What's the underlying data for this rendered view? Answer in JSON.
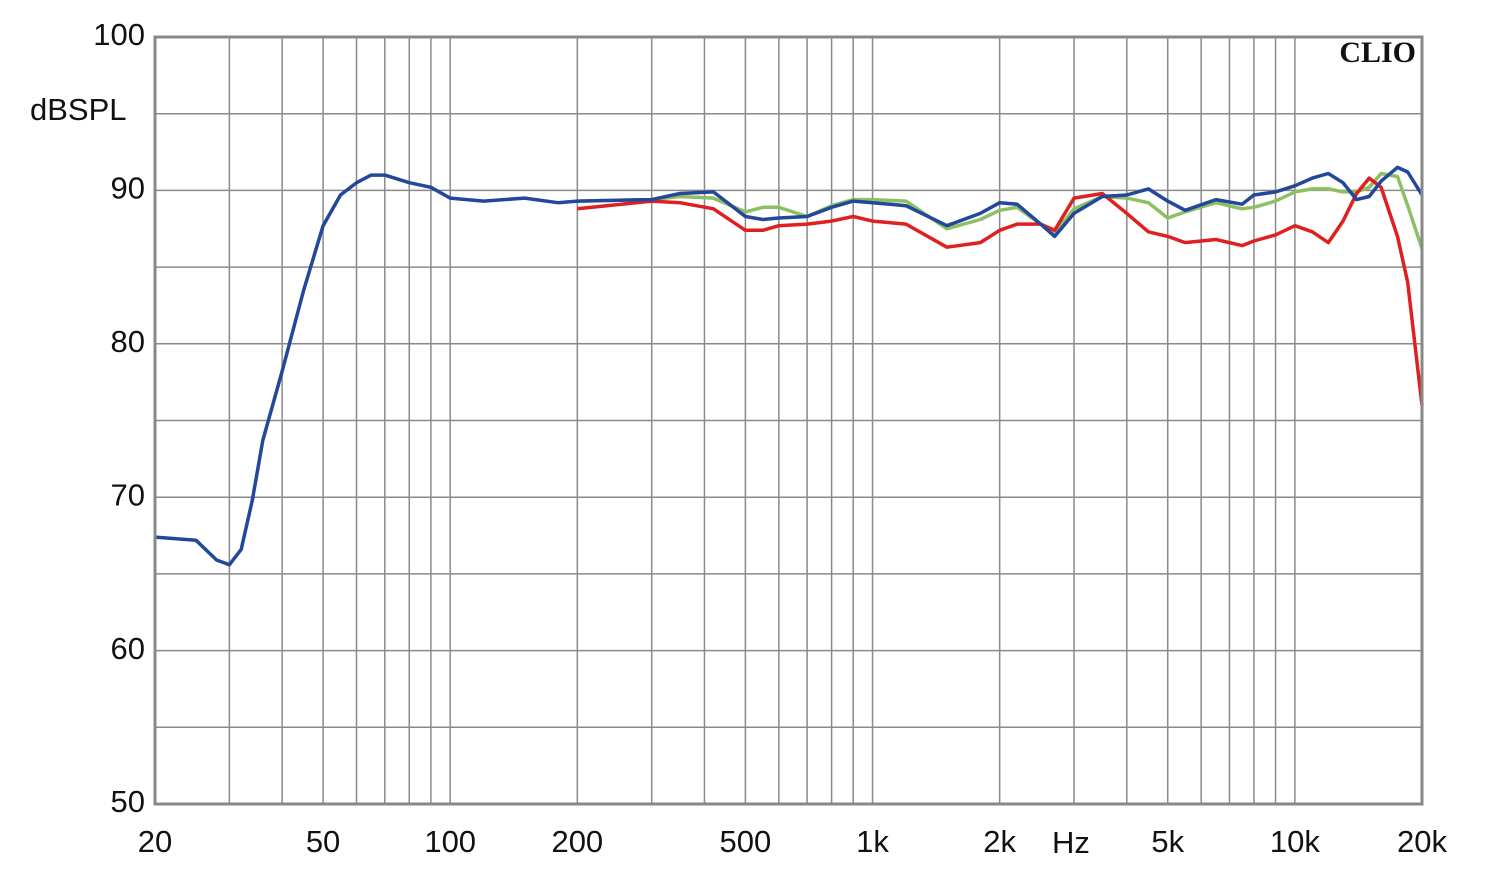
{
  "chart_data": {
    "type": "line",
    "log_x": true,
    "grid": true,
    "y_label": "dBSPL",
    "x_label": "Hz",
    "watermark": "CLIO",
    "xlim": [
      20,
      20000
    ],
    "ylim": [
      50,
      100
    ],
    "xticks": [
      20,
      50,
      100,
      200,
      500,
      {
        "value": 1000,
        "label": "1k"
      },
      {
        "value": 2000,
        "label": "2k"
      },
      {
        "value": 5000,
        "label": "5k"
      },
      {
        "value": 10000,
        "label": "10k"
      },
      {
        "value": 20000,
        "label": "20k"
      }
    ],
    "x_minor_ticks": [
      30,
      40,
      60,
      70,
      80,
      90,
      300,
      400,
      600,
      700,
      800,
      900,
      3000,
      4000,
      6000,
      7000,
      8000,
      9000
    ],
    "yticks": [
      50,
      60,
      70,
      80,
      90,
      100
    ],
    "y_minor_ticks": [
      55,
      65,
      75,
      85,
      95
    ],
    "x": [
      20,
      25,
      28,
      30,
      32,
      34,
      36,
      40,
      45,
      50,
      55,
      60,
      65,
      70,
      80,
      90,
      100,
      120,
      150,
      180,
      200,
      300,
      350,
      420,
      500,
      550,
      600,
      700,
      800,
      900,
      1000,
      1200,
      1500,
      1800,
      2000,
      2200,
      2500,
      2700,
      3000,
      3500,
      4000,
      4500,
      5000,
      5500,
      6500,
      7500,
      8000,
      9000,
      10000,
      11000,
      12000,
      13000,
      14000,
      15000,
      16000,
      17500,
      18500,
      20000
    ],
    "series": [
      {
        "color": "#8cc063",
        "values": [
          null,
          null,
          null,
          null,
          null,
          null,
          null,
          null,
          null,
          null,
          null,
          null,
          null,
          null,
          null,
          null,
          null,
          null,
          null,
          null,
          89.3,
          89.4,
          89.6,
          89.5,
          88.6,
          88.9,
          88.9,
          88.3,
          89.0,
          89.4,
          89.4,
          89.3,
          87.5,
          88.1,
          88.7,
          88.9,
          87.8,
          87.2,
          88.8,
          89.6,
          89.5,
          89.2,
          88.2,
          88.6,
          89.2,
          88.8,
          88.9,
          89.3,
          89.9,
          90.1,
          90.1,
          89.9,
          89.9,
          90.2,
          91.1,
          90.9,
          89.0,
          86.2
        ]
      },
      {
        "color": "#e02020",
        "values": [
          null,
          null,
          null,
          null,
          null,
          null,
          null,
          null,
          null,
          null,
          null,
          null,
          null,
          null,
          null,
          null,
          null,
          null,
          null,
          null,
          88.8,
          89.3,
          89.2,
          88.8,
          87.4,
          87.4,
          87.7,
          87.8,
          88.0,
          88.3,
          88.0,
          87.8,
          86.3,
          86.6,
          87.4,
          87.8,
          87.8,
          87.4,
          89.5,
          89.8,
          88.5,
          87.3,
          87.0,
          86.6,
          86.8,
          86.4,
          86.7,
          87.1,
          87.7,
          87.3,
          86.6,
          88.0,
          89.8,
          90.8,
          90.2,
          87.0,
          84.0,
          76.0
        ]
      },
      {
        "color": "#23479a",
        "values": [
          67.4,
          67.2,
          65.9,
          65.6,
          66.6,
          69.8,
          73.7,
          78.2,
          83.5,
          87.7,
          89.7,
          90.5,
          91.0,
          91.0,
          90.5,
          90.2,
          89.5,
          89.3,
          89.5,
          89.2,
          89.3,
          89.4,
          89.8,
          89.9,
          88.3,
          88.1,
          88.2,
          88.3,
          88.9,
          89.3,
          89.2,
          89.0,
          87.7,
          88.5,
          89.2,
          89.1,
          87.8,
          87.0,
          88.5,
          89.6,
          89.7,
          90.1,
          89.3,
          88.7,
          89.4,
          89.1,
          89.7,
          89.9,
          90.3,
          90.8,
          91.1,
          90.5,
          89.4,
          89.6,
          90.6,
          91.5,
          91.2,
          89.7
        ]
      }
    ]
  }
}
